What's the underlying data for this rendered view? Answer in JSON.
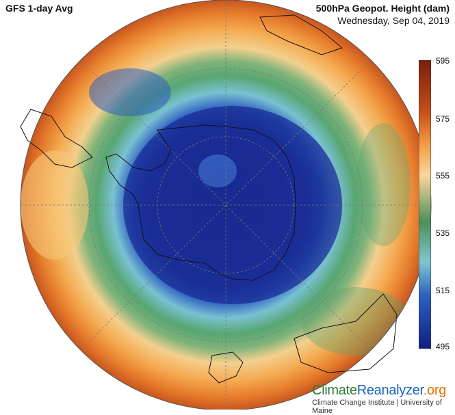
{
  "header": {
    "left_title": "GFS 1-day Avg",
    "right_title": "500hPa Geopot. Height (dam)",
    "date": "Wednesday, Sep 04, 2019"
  },
  "colorbar": {
    "ticks": [
      "595",
      "575",
      "555",
      "535",
      "515",
      "495"
    ],
    "colors": [
      "#7a1e0c",
      "#c6501a",
      "#f6a04b",
      "#f9d79c",
      "#4d8f5a",
      "#7ec6d1",
      "#2a5fbf",
      "#0f2080"
    ]
  },
  "branding": {
    "part1": "Climate",
    "part2": "Reanalyzer",
    "part3": ".org",
    "subtitle": "Climate Change Institute | University of Maine"
  }
}
